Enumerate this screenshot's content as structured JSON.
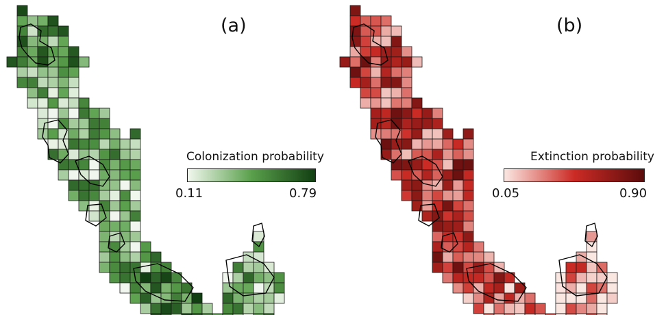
{
  "panels": [
    {
      "label": "(a)",
      "legend": {
        "title": "Colonization probability",
        "min": "0.11",
        "max": "0.79",
        "colors": [
          "#f1f7ee",
          "#5aa04c",
          "#123f12"
        ]
      }
    },
    {
      "label": "(b)",
      "legend": {
        "title": "Extinction probability",
        "min": "0.05",
        "max": "0.90",
        "colors": [
          "#fbe7e2",
          "#cc2b25",
          "#5c0c0c"
        ]
      }
    }
  ]
}
